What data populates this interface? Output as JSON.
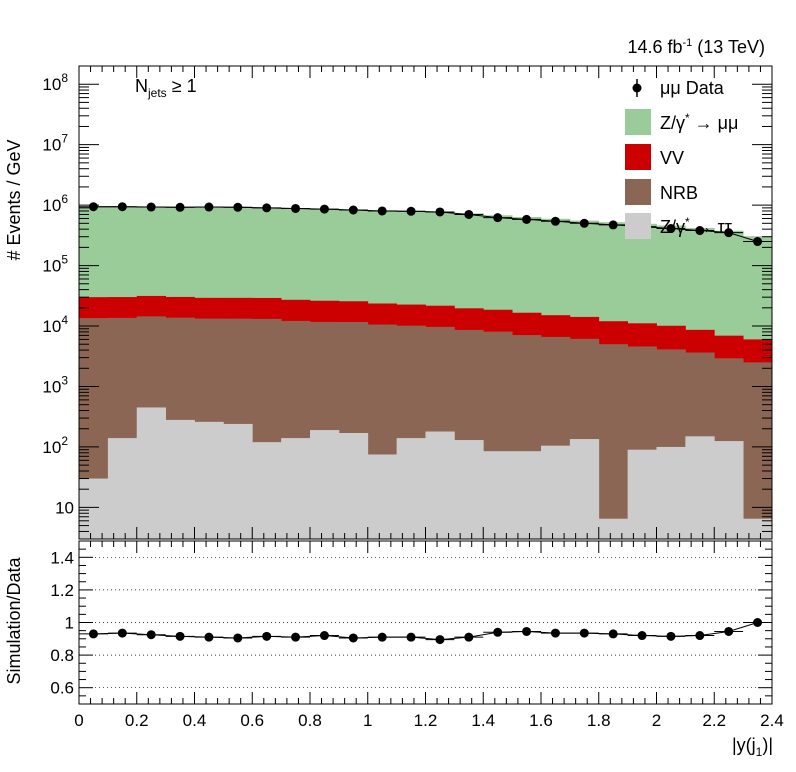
{
  "header": {
    "lumi_prefix": "14.6 fb",
    "lumi_sup": "-1",
    "lumi_suffix": " (13 TeV)",
    "selection_main": "N",
    "selection_sub": "jets",
    "selection_cond": " ≥ 1"
  },
  "legend": {
    "data": "μμ Data",
    "zmm": "Z/γ",
    "zmm_sup": "*",
    "zmm_arrow": " → μμ",
    "vv": "VV",
    "nrb": "NRB",
    "ztt": "Z/γ",
    "ztt_sup": "*",
    "ztt_arrow": " → ττ"
  },
  "colors": {
    "zmm": "#99cc99",
    "vv": "#cc0000",
    "nrb": "#8c6654",
    "ztt": "#cccccc",
    "data": "#000000"
  },
  "chart_data": [
    {
      "type": "area",
      "stacked_histogram": true,
      "log_y": true,
      "xlabel_main": "|y(j",
      "xlabel_sub": "1",
      "xlabel_end": ")|",
      "ylabel": "# Events / GeV",
      "xlim": [
        0,
        2.4
      ],
      "ylim": [
        3,
        200000000
      ],
      "x_ticks": [
        "0",
        "0.2",
        "0.4",
        "0.6",
        "0.8",
        "1",
        "1.2",
        "1.4",
        "1.6",
        "1.8",
        "2",
        "2.2",
        "2.4"
      ],
      "y_ticks": [
        {
          "base": "10",
          "exp": "",
          "value": 10
        },
        {
          "base": "10",
          "exp": "2",
          "value": 100
        },
        {
          "base": "10",
          "exp": "3",
          "value": 1000
        },
        {
          "base": "10",
          "exp": "4",
          "value": 10000
        },
        {
          "base": "10",
          "exp": "5",
          "value": 100000
        },
        {
          "base": "10",
          "exp": "6",
          "value": 1000000
        },
        {
          "base": "10",
          "exp": "7",
          "value": 10000000
        },
        {
          "base": "10",
          "exp": "8",
          "value": 100000000
        }
      ],
      "bin_edges": [
        0,
        0.1,
        0.2,
        0.3,
        0.4,
        0.5,
        0.6,
        0.7,
        0.8,
        0.9,
        1.0,
        1.1,
        1.2,
        1.3,
        1.4,
        1.5,
        1.6,
        1.7,
        1.8,
        1.9,
        2.0,
        2.1,
        2.2,
        2.3,
        2.4
      ],
      "series": [
        {
          "name": "Z/γ* → ττ",
          "key": "ztt",
          "values": [
            30,
            140,
            450,
            280,
            260,
            240,
            120,
            140,
            190,
            170,
            75,
            140,
            180,
            130,
            85,
            85,
            105,
            135,
            6.5,
            90,
            100,
            150,
            125,
            6.5
          ]
        },
        {
          "name": "NRB",
          "key": "nrb",
          "values": [
            13500,
            13500,
            14000,
            13500,
            13000,
            13000,
            13000,
            12000,
            11500,
            11500,
            10500,
            10000,
            9500,
            8500,
            8000,
            7000,
            6500,
            6000,
            5000,
            4500,
            4000,
            3500,
            2800,
            2500
          ]
        },
        {
          "name": "VV",
          "key": "vv",
          "values": [
            16500,
            16500,
            17000,
            16500,
            16000,
            16000,
            16000,
            15000,
            14500,
            14000,
            13000,
            12500,
            12000,
            11000,
            10500,
            9500,
            8500,
            8000,
            7000,
            6500,
            6000,
            5000,
            4000,
            3500
          ]
        },
        {
          "name": "Z/γ* → μμ",
          "key": "zmm",
          "values": [
            900000,
            910000,
            910000,
            905000,
            900000,
            895000,
            880000,
            860000,
            840000,
            820000,
            800000,
            780000,
            750000,
            710000,
            660000,
            620000,
            580000,
            540000,
            510000,
            480000,
            450000,
            410000,
            370000,
            300000
          ]
        }
      ],
      "data_points": {
        "name": "μμ Data",
        "x": [
          0.05,
          0.15,
          0.25,
          0.35,
          0.45,
          0.55,
          0.65,
          0.75,
          0.85,
          0.95,
          1.05,
          1.15,
          1.25,
          1.35,
          1.45,
          1.55,
          1.65,
          1.75,
          1.85,
          1.95,
          2.05,
          2.15,
          2.25,
          2.35
        ],
        "y": [
          940000,
          940000,
          930000,
          920000,
          930000,
          920000,
          900000,
          880000,
          860000,
          830000,
          800000,
          790000,
          770000,
          700000,
          620000,
          580000,
          540000,
          500000,
          470000,
          440000,
          410000,
          380000,
          350000,
          250000
        ]
      }
    },
    {
      "type": "scatter",
      "ylabel": "Simulation/Data",
      "xlim": [
        0,
        2.4
      ],
      "ylim": [
        0.5,
        1.5
      ],
      "x_ticks": [
        "0",
        "0.2",
        "0.4",
        "0.6",
        "0.8",
        "1",
        "1.2",
        "1.4",
        "1.6",
        "1.8",
        "2",
        "2.2",
        "2.4"
      ],
      "y_ticks": [
        {
          "label": "0.6",
          "value": 0.6
        },
        {
          "label": "0.8",
          "value": 0.8
        },
        {
          "label": "1",
          "value": 1.0
        },
        {
          "label": "1.2",
          "value": 1.2
        },
        {
          "label": "1.4",
          "value": 1.4
        }
      ],
      "grid_y": [
        0.6,
        0.8,
        1.0,
        1.2,
        1.4
      ],
      "x": [
        0.05,
        0.15,
        0.25,
        0.35,
        0.45,
        0.55,
        0.65,
        0.75,
        0.85,
        0.95,
        1.05,
        1.15,
        1.25,
        1.35,
        1.45,
        1.55,
        1.65,
        1.75,
        1.85,
        1.95,
        2.05,
        2.15,
        2.25,
        2.35
      ],
      "values": [
        0.93,
        0.935,
        0.925,
        0.915,
        0.91,
        0.905,
        0.915,
        0.91,
        0.92,
        0.905,
        0.91,
        0.91,
        0.895,
        0.91,
        0.94,
        0.945,
        0.935,
        0.935,
        0.93,
        0.92,
        0.915,
        0.92,
        0.945,
        1.0
      ]
    }
  ]
}
